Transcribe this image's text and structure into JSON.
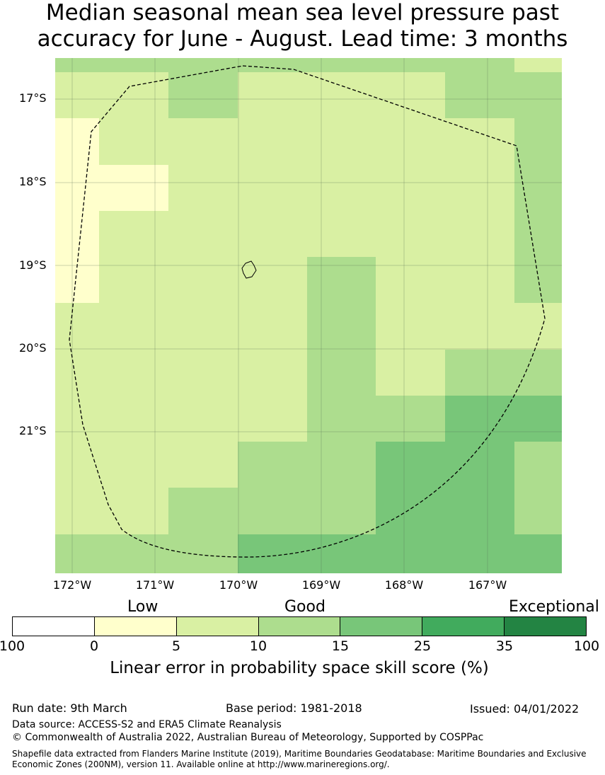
{
  "title": {
    "line1": "Median seasonal mean sea level pressure past",
    "line2": "accuracy for June - August. Lead time: 3 months"
  },
  "map": {
    "lat_labels": [
      "17°S",
      "18°S",
      "19°S",
      "20°S",
      "21°S"
    ],
    "lon_labels": [
      "172°W",
      "171°W",
      "170°W",
      "169°W",
      "168°W",
      "167°W"
    ],
    "category_colors": {
      "low_0_5": "#ffffcc",
      "5_10": "#d9f0a3",
      "10_15": "#addd8e",
      "15_25": "#78c679"
    },
    "grid_rows": [
      [
        "c",
        "c",
        "c",
        "d",
        "d",
        "d",
        "d",
        "d"
      ],
      [
        "b",
        "b",
        "c",
        "c",
        "c",
        "d",
        "d",
        "c"
      ],
      [
        "b",
        "b",
        "b",
        "c",
        "c",
        "d",
        "d",
        "c"
      ],
      [
        "b",
        "b",
        "b",
        "b",
        "c",
        "c",
        "d",
        "d"
      ],
      [
        "b",
        "b",
        "b",
        "b",
        "c",
        "b",
        "c",
        "c"
      ],
      [
        "b",
        "b",
        "b",
        "b",
        "c",
        "b",
        "b",
        "b"
      ],
      [
        "a",
        "b",
        "b",
        "b",
        "c",
        "b",
        "b",
        "c"
      ],
      [
        "a",
        "b",
        "b",
        "b",
        "b",
        "b",
        "b",
        "c"
      ],
      [
        "a",
        "a",
        "b",
        "b",
        "b",
        "b",
        "b",
        "c"
      ],
      [
        "a",
        "b",
        "b",
        "b",
        "b",
        "b",
        "b",
        "c"
      ],
      [
        "b",
        "b",
        "c",
        "b",
        "b",
        "b",
        "c",
        "c"
      ],
      [
        "c",
        "c",
        "c",
        "c",
        "c",
        "c",
        "c",
        "b"
      ]
    ]
  },
  "legend": {
    "categories": [
      "Low",
      "Good",
      "Exceptional"
    ],
    "colors": [
      "#ffffff",
      "#ffffcc",
      "#d9f0a3",
      "#addd8e",
      "#78c679",
      "#41ab5d",
      "#238443"
    ],
    "ticks": [
      "100",
      "0",
      "5",
      "10",
      "15",
      "25",
      "35",
      "100"
    ],
    "axis_title": "Linear error in probability space skill score (%)"
  },
  "footer": {
    "run_date": "Run date: 9th March",
    "base_period": "Base period: 1981-2018",
    "issued": "Issued: 04/01/2022",
    "data_source": "Data source: ACCESS-S2 and ERA5 Climate Reanalysis",
    "copyright": "© Commonwealth of Australia 2022, Australian Bureau of Meteorology, Supported by COSPPac",
    "shapefile": "Shapefile data extracted from Flanders Marine Institute (2019), Maritime Boundaries Geodatabase: Maritime Boundaries and Exclusive Economic Zones (200NM), version 11. Available online at http://www.marineregions.org/."
  }
}
